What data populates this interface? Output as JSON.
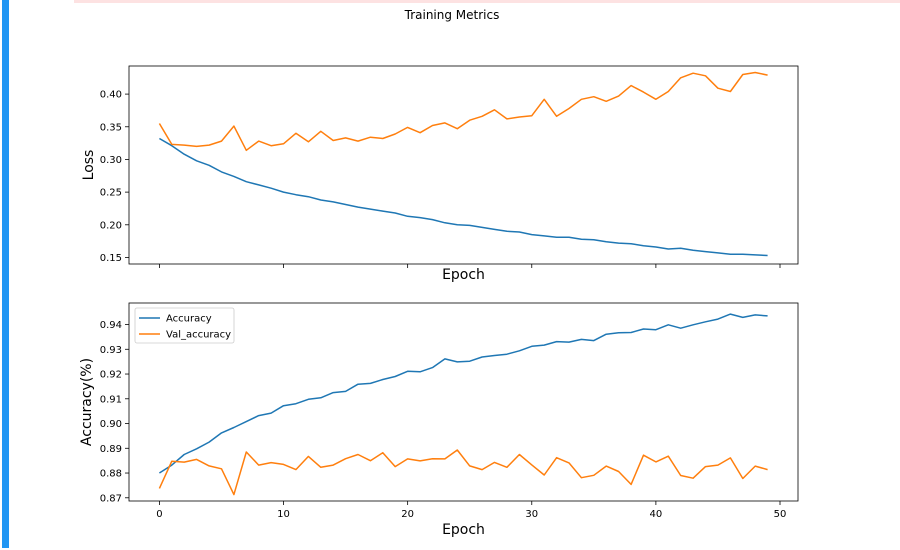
{
  "figure": {
    "suptitle": "Training Metrics",
    "colors": {
      "train": "#1f77b4",
      "val": "#ff7f0e",
      "accent_bar": "#2196f3"
    }
  },
  "chart_data": [
    {
      "type": "line",
      "xlabel": "Epoch",
      "ylabel": "Loss",
      "xlim": [
        -2.45,
        51.45
      ],
      "ylim": [
        0.14,
        0.443
      ],
      "yticks": [
        "0.15",
        "0.20",
        "0.25",
        "0.30",
        "0.35",
        "0.40"
      ],
      "xticks": [
        0,
        10,
        20,
        30,
        40,
        50
      ],
      "show_xticklabels": false,
      "legend": null,
      "x": [
        0,
        1,
        2,
        3,
        4,
        5,
        6,
        7,
        8,
        9,
        10,
        11,
        12,
        13,
        14,
        15,
        16,
        17,
        18,
        19,
        20,
        21,
        22,
        23,
        24,
        25,
        26,
        27,
        28,
        29,
        30,
        31,
        32,
        33,
        34,
        35,
        36,
        37,
        38,
        39,
        40,
        41,
        42,
        43,
        44,
        45,
        46,
        47,
        48,
        49
      ],
      "series": [
        {
          "key": "loss",
          "values": [
            0.332,
            0.321,
            0.308,
            0.298,
            0.291,
            0.281,
            0.274,
            0.266,
            0.261,
            0.256,
            0.25,
            0.246,
            0.243,
            0.238,
            0.235,
            0.231,
            0.227,
            0.224,
            0.221,
            0.218,
            0.213,
            0.211,
            0.208,
            0.203,
            0.2,
            0.199,
            0.196,
            0.193,
            0.19,
            0.189,
            0.185,
            0.183,
            0.181,
            0.181,
            0.178,
            0.177,
            0.174,
            0.172,
            0.171,
            0.168,
            0.166,
            0.163,
            0.164,
            0.161,
            0.159,
            0.157,
            0.155,
            0.155,
            0.154,
            0.153
          ]
        },
        {
          "key": "val_loss",
          "values": [
            0.355,
            0.323,
            0.322,
            0.32,
            0.322,
            0.328,
            0.351,
            0.314,
            0.328,
            0.321,
            0.324,
            0.34,
            0.327,
            0.343,
            0.329,
            0.333,
            0.328,
            0.334,
            0.332,
            0.339,
            0.349,
            0.341,
            0.352,
            0.356,
            0.347,
            0.36,
            0.366,
            0.376,
            0.362,
            0.365,
            0.367,
            0.392,
            0.366,
            0.378,
            0.392,
            0.396,
            0.389,
            0.397,
            0.413,
            0.403,
            0.392,
            0.404,
            0.425,
            0.432,
            0.428,
            0.409,
            0.404,
            0.43,
            0.433,
            0.429
          ]
        }
      ]
    },
    {
      "type": "line",
      "xlabel": "Epoch",
      "ylabel": "Accuracy(%)",
      "xlim": [
        -2.45,
        51.45
      ],
      "ylim": [
        0.8687,
        0.9487
      ],
      "yticks": [
        "0.87",
        "0.88",
        "0.89",
        "0.90",
        "0.91",
        "0.92",
        "0.93",
        "0.94"
      ],
      "xticks": [
        0,
        10,
        20,
        30,
        40,
        50
      ],
      "show_xticklabels": true,
      "legend": "upper left",
      "x": [
        0,
        1,
        2,
        3,
        4,
        5,
        6,
        7,
        8,
        9,
        10,
        11,
        12,
        13,
        14,
        15,
        16,
        17,
        18,
        19,
        20,
        21,
        22,
        23,
        24,
        25,
        26,
        27,
        28,
        29,
        30,
        31,
        32,
        33,
        34,
        35,
        36,
        37,
        38,
        39,
        40,
        41,
        42,
        43,
        44,
        45,
        46,
        47,
        48,
        49
      ],
      "series": [
        {
          "key": "acc",
          "name": "Accuracy",
          "values": [
            0.88,
            0.8832,
            0.8875,
            0.8898,
            0.8925,
            0.8962,
            0.8984,
            0.9008,
            0.9032,
            0.9042,
            0.9072,
            0.908,
            0.9098,
            0.9104,
            0.9125,
            0.913,
            0.9159,
            0.9162,
            0.9178,
            0.919,
            0.9211,
            0.9209,
            0.9226,
            0.9261,
            0.9249,
            0.9252,
            0.9269,
            0.9275,
            0.928,
            0.9294,
            0.9312,
            0.9317,
            0.9331,
            0.9329,
            0.934,
            0.9335,
            0.9361,
            0.9367,
            0.9368,
            0.9382,
            0.9379,
            0.9399,
            0.9385,
            0.9399,
            0.9411,
            0.9422,
            0.9442,
            0.9429,
            0.9439,
            0.9435
          ]
        },
        {
          "key": "val_acc",
          "name": "Val_accuracy",
          "values": [
            0.8738,
            0.8848,
            0.8844,
            0.8855,
            0.8829,
            0.8817,
            0.8713,
            0.8885,
            0.8832,
            0.8842,
            0.8835,
            0.8814,
            0.8867,
            0.8823,
            0.8832,
            0.8858,
            0.8875,
            0.885,
            0.8882,
            0.8826,
            0.8857,
            0.8849,
            0.8858,
            0.8857,
            0.8893,
            0.8829,
            0.8814,
            0.8843,
            0.8823,
            0.8875,
            0.8833,
            0.8792,
            0.8862,
            0.8841,
            0.8781,
            0.8791,
            0.8828,
            0.8806,
            0.8754,
            0.8872,
            0.8845,
            0.8868,
            0.879,
            0.8779,
            0.8826,
            0.8832,
            0.8861,
            0.8778,
            0.8828,
            0.8814
          ]
        }
      ]
    }
  ]
}
